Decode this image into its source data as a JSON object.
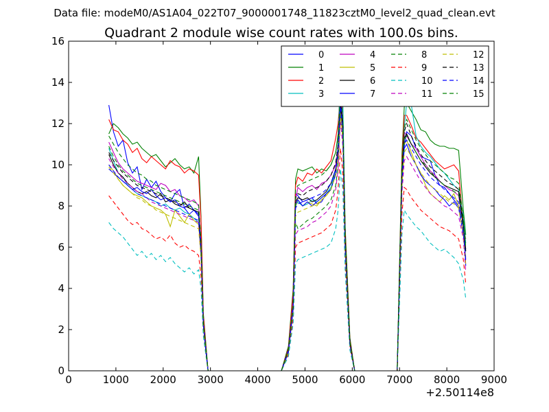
{
  "header": {
    "datafile": "Data file: modeM0/AS1A04_022T07_9000001748_11823cztM0_level2_quad_clean.evt"
  },
  "chart_data": {
    "type": "line",
    "title": "Quadrant 2 module wise count rates with 100.0s bins.",
    "xlabel": "",
    "ylabel": "",
    "x_offset_label": "+2.50114e8",
    "xlim": [
      0,
      9000
    ],
    "ylim": [
      0,
      16
    ],
    "xticks": [
      0,
      1000,
      2000,
      3000,
      4000,
      5000,
      6000,
      7000,
      8000,
      9000
    ],
    "yticks": [
      0,
      2,
      4,
      6,
      8,
      10,
      12,
      14,
      16
    ],
    "x": [
      850,
      950,
      1050,
      1150,
      1250,
      1350,
      1450,
      1550,
      1650,
      1750,
      1850,
      1950,
      2050,
      2150,
      2250,
      2350,
      2450,
      2550,
      2650,
      2750,
      2800,
      2850,
      2900,
      2950,
      3050,
      3500,
      4000,
      4500,
      4650,
      4750,
      4800,
      4850,
      4950,
      5050,
      5150,
      5250,
      5350,
      5450,
      5550,
      5650,
      5700,
      5750,
      5800,
      5850,
      5950,
      6050,
      6500,
      6950,
      7050,
      7100,
      7150,
      7250,
      7350,
      7450,
      7550,
      7650,
      7750,
      7850,
      7950,
      8050,
      8150,
      8250,
      8350,
      8400
    ],
    "legend": {
      "placement": "top-right",
      "columns": 4
    },
    "grid": false,
    "series": [
      {
        "name": "0",
        "color": "#0000ff",
        "dashed": false,
        "values": [
          12.9,
          11.6,
          10.9,
          11.2,
          10.1,
          9.6,
          9.9,
          8.8,
          9.3,
          8.9,
          9.2,
          8.7,
          8.4,
          8.2,
          8.6,
          8.8,
          7.9,
          7.6,
          7.8,
          7.5,
          6.0,
          2.5,
          1.2,
          0,
          0,
          0,
          0,
          0,
          1.0,
          3.3,
          8.6,
          8.5,
          8.2,
          8.3,
          8.4,
          8.1,
          8.2,
          8.6,
          8.9,
          9.5,
          10.5,
          12.6,
          11.3,
          6.0,
          1.3,
          0,
          0,
          0,
          9.0,
          10.9,
          11.6,
          11.4,
          10.8,
          10.4,
          10.3,
          10.2,
          9.5,
          9.0,
          8.9,
          8.6,
          8.3,
          8.0,
          7.2,
          5.1
        ]
      },
      {
        "name": "1",
        "color": "#008000",
        "dashed": false,
        "values": [
          11.5,
          12.0,
          11.8,
          11.5,
          11.3,
          11.0,
          11.1,
          10.8,
          10.6,
          10.4,
          10.5,
          10.2,
          9.9,
          10.1,
          10.3,
          10.0,
          9.8,
          9.9,
          9.6,
          10.4,
          7.5,
          2.8,
          1.4,
          0,
          0,
          0,
          0,
          0,
          1.2,
          4.0,
          9.3,
          9.8,
          9.7,
          9.8,
          9.9,
          9.6,
          9.8,
          9.7,
          10.0,
          10.6,
          11.5,
          14.2,
          12.8,
          7.0,
          1.6,
          0,
          0,
          0,
          10.5,
          12.8,
          13.0,
          12.6,
          12.2,
          11.7,
          11.6,
          11.2,
          11.0,
          10.9,
          10.9,
          10.8,
          10.8,
          10.7,
          7.8,
          6.6
        ]
      },
      {
        "name": "2",
        "color": "#ff0000",
        "dashed": false,
        "values": [
          12.2,
          11.7,
          11.6,
          11.2,
          11.0,
          10.6,
          10.8,
          10.3,
          10.1,
          10.4,
          10.2,
          10.0,
          9.8,
          10.2,
          10.0,
          9.9,
          9.6,
          9.8,
          9.7,
          9.5,
          7.3,
          2.7,
          1.3,
          0,
          0,
          0,
          0,
          0,
          1.1,
          3.8,
          9.0,
          9.4,
          9.2,
          9.6,
          9.5,
          9.8,
          9.6,
          9.9,
          10.2,
          11.3,
          12.0,
          13.6,
          12.4,
          6.8,
          1.5,
          0,
          0,
          0,
          10.1,
          12.4,
          12.4,
          11.9,
          11.3,
          11.1,
          10.8,
          10.5,
          10.2,
          10.0,
          9.8,
          9.9,
          10.0,
          9.7,
          7.0,
          6.4
        ]
      },
      {
        "name": "3",
        "color": "#00bfbf",
        "dashed": false,
        "values": [
          10.8,
          10.2,
          9.6,
          9.4,
          9.0,
          8.8,
          8.6,
          8.5,
          8.4,
          8.3,
          8.2,
          8.0,
          8.1,
          7.9,
          7.8,
          7.9,
          7.7,
          7.6,
          7.4,
          7.2,
          5.8,
          2.3,
          1.1,
          0,
          0,
          0,
          0,
          0,
          0.9,
          3.1,
          8.0,
          8.2,
          8.0,
          8.1,
          8.3,
          8.2,
          8.4,
          8.6,
          8.9,
          9.8,
          11.0,
          14.6,
          13.0,
          6.5,
          1.3,
          0,
          0,
          0,
          9.5,
          11.8,
          13.0,
          12.9,
          11.4,
          10.9,
          10.6,
          10.4,
          10.1,
          9.8,
          9.6,
          9.3,
          9.0,
          8.8,
          7.5,
          6.2
        ]
      },
      {
        "name": "4",
        "color": "#bf00bf",
        "dashed": false,
        "values": [
          11.1,
          10.6,
          10.1,
          9.8,
          9.6,
          9.4,
          9.2,
          9.1,
          9.0,
          8.9,
          8.8,
          9.1,
          9.0,
          8.7,
          8.8,
          8.5,
          8.4,
          8.2,
          8.3,
          8.0,
          6.2,
          2.4,
          1.2,
          0,
          0,
          0,
          0,
          0,
          1.0,
          3.4,
          8.3,
          8.9,
          8.7,
          8.9,
          9.0,
          8.8,
          9.1,
          9.2,
          9.5,
          10.0,
          10.8,
          12.8,
          11.8,
          6.2,
          1.4,
          0,
          0,
          0,
          9.6,
          11.6,
          11.4,
          11.0,
          10.8,
          10.4,
          10.0,
          9.7,
          9.5,
          9.2,
          9.0,
          8.8,
          8.7,
          8.5,
          7.0,
          5.8
        ]
      },
      {
        "name": "5",
        "color": "#bfbf00",
        "dashed": false,
        "values": [
          10.0,
          9.7,
          9.3,
          9.0,
          8.8,
          8.6,
          8.5,
          8.4,
          8.2,
          8.0,
          7.9,
          7.8,
          7.6,
          7.0,
          7.8,
          7.5,
          7.2,
          7.6,
          7.3,
          7.1,
          5.6,
          2.2,
          1.1,
          0,
          0,
          0,
          0,
          0,
          0.9,
          3.0,
          8.0,
          8.3,
          8.0,
          8.2,
          8.1,
          8.0,
          8.3,
          8.5,
          8.8,
          9.6,
          10.4,
          12.4,
          11.5,
          6.0,
          1.3,
          0,
          0,
          0,
          9.2,
          11.0,
          11.2,
          10.6,
          10.0,
          9.6,
          9.0,
          8.6,
          8.4,
          8.2,
          8.5,
          8.3,
          8.6,
          8.0,
          6.6,
          5.5
        ]
      },
      {
        "name": "6",
        "color": "#000000",
        "dashed": false,
        "values": [
          10.5,
          10.0,
          9.6,
          9.4,
          9.1,
          8.9,
          8.7,
          8.6,
          8.7,
          8.5,
          8.4,
          8.6,
          8.2,
          8.3,
          8.1,
          8.0,
          8.2,
          7.9,
          7.8,
          7.7,
          6.0,
          2.3,
          1.1,
          0,
          0,
          0,
          0,
          0,
          1.0,
          3.2,
          8.2,
          8.4,
          8.3,
          8.4,
          8.2,
          8.3,
          8.5,
          8.7,
          9.1,
          9.8,
          10.7,
          12.9,
          11.8,
          6.3,
          1.4,
          0,
          0,
          0,
          9.4,
          11.3,
          11.5,
          11.0,
          10.6,
          10.2,
          9.9,
          9.6,
          9.4,
          9.2,
          9.0,
          8.9,
          8.8,
          8.7,
          7.0,
          5.9
        ]
      },
      {
        "name": "7",
        "color": "#0000ff",
        "dashed": false,
        "values": [
          9.8,
          9.6,
          9.4,
          9.2,
          9.0,
          8.8,
          8.9,
          8.7,
          8.6,
          8.8,
          8.5,
          8.3,
          8.4,
          8.2,
          8.3,
          8.0,
          7.9,
          8.1,
          7.8,
          7.6,
          6.0,
          2.3,
          1.1,
          0,
          0,
          0,
          0,
          0,
          1.0,
          3.2,
          8.1,
          8.3,
          8.0,
          8.2,
          8.0,
          8.2,
          8.4,
          8.6,
          8.8,
          9.6,
          10.6,
          13.2,
          12.0,
          6.2,
          1.3,
          0,
          0,
          0,
          9.0,
          10.8,
          11.0,
          10.4,
          10.0,
          9.5,
          9.2,
          9.0,
          8.8,
          8.5,
          8.3,
          8.0,
          8.2,
          7.9,
          6.6,
          5.4
        ]
      },
      {
        "name": "8",
        "color": "#008000",
        "dashed": true,
        "values": [
          10.9,
          10.4,
          10.0,
          9.7,
          9.5,
          9.3,
          9.1,
          9.0,
          8.9,
          8.8,
          8.7,
          8.6,
          8.5,
          8.4,
          8.3,
          8.2,
          8.1,
          8.0,
          7.9,
          7.8,
          6.1,
          2.3,
          1.1,
          0,
          0,
          0,
          0,
          0,
          0.9,
          3.0,
          7.2,
          6.9,
          7.1,
          7.3,
          7.4,
          7.6,
          7.8,
          8.0,
          8.3,
          9.0,
          10.0,
          12.6,
          11.2,
          6.0,
          1.3,
          0,
          0,
          0,
          9.2,
          11.2,
          11.4,
          11.0,
          10.6,
          10.2,
          10.0,
          9.7,
          9.4,
          9.2,
          9.0,
          8.9,
          8.7,
          8.6,
          7.0,
          5.8
        ]
      },
      {
        "name": "9",
        "color": "#ff0000",
        "dashed": true,
        "values": [
          8.5,
          8.2,
          7.9,
          7.6,
          7.3,
          7.1,
          7.2,
          6.9,
          6.8,
          6.6,
          6.4,
          6.5,
          6.3,
          6.6,
          6.2,
          6.0,
          6.1,
          5.9,
          5.8,
          5.6,
          4.6,
          1.9,
          0.9,
          0,
          0,
          0,
          0,
          0,
          0.8,
          2.6,
          6.0,
          6.2,
          6.3,
          6.4,
          6.5,
          6.6,
          6.7,
          6.9,
          7.1,
          7.8,
          8.8,
          10.8,
          9.6,
          5.2,
          1.1,
          0,
          0,
          0,
          7.6,
          8.9,
          8.8,
          8.4,
          8.1,
          7.8,
          7.6,
          7.4,
          7.2,
          7.0,
          6.9,
          6.8,
          6.6,
          6.4,
          5.4,
          4.2
        ]
      },
      {
        "name": "10",
        "color": "#00bfbf",
        "dashed": true,
        "values": [
          7.2,
          6.9,
          6.7,
          6.5,
          6.2,
          5.9,
          5.6,
          5.8,
          5.5,
          5.7,
          5.4,
          5.6,
          5.3,
          5.5,
          5.2,
          5.0,
          4.8,
          5.0,
          4.7,
          4.9,
          4.0,
          1.7,
          0.8,
          0,
          0,
          0,
          0,
          0,
          0.7,
          2.3,
          5.2,
          5.4,
          5.5,
          5.6,
          5.7,
          5.8,
          5.9,
          6.0,
          6.2,
          6.9,
          7.8,
          9.8,
          8.8,
          4.8,
          1.0,
          0,
          0,
          0,
          6.6,
          7.8,
          7.6,
          7.3,
          7.0,
          6.8,
          6.5,
          6.2,
          6.0,
          5.8,
          5.9,
          5.7,
          5.5,
          5.2,
          4.4,
          3.5
        ]
      },
      {
        "name": "11",
        "color": "#bf00bf",
        "dashed": true,
        "values": [
          10.3,
          9.9,
          9.6,
          9.3,
          9.1,
          8.9,
          8.7,
          8.6,
          8.4,
          8.2,
          8.1,
          8.0,
          7.9,
          7.8,
          7.7,
          7.6,
          7.5,
          7.4,
          7.3,
          7.2,
          5.7,
          2.2,
          1.0,
          0,
          0,
          0,
          0,
          0,
          0.9,
          2.9,
          6.6,
          6.8,
          6.9,
          7.0,
          7.2,
          7.3,
          7.5,
          7.7,
          8.0,
          8.8,
          9.8,
          12.1,
          10.9,
          5.8,
          1.2,
          0,
          0,
          0,
          8.6,
          10.2,
          10.4,
          10.0,
          9.6,
          9.2,
          8.9,
          8.6,
          8.4,
          8.2,
          8.0,
          7.9,
          7.7,
          7.5,
          6.4,
          4.8
        ]
      },
      {
        "name": "12",
        "color": "#bfbf00",
        "dashed": true,
        "values": [
          9.9,
          9.6,
          9.3,
          9.0,
          8.8,
          8.6,
          8.4,
          8.3,
          8.1,
          8.0,
          7.8,
          7.7,
          7.6,
          7.5,
          7.4,
          7.3,
          7.2,
          7.1,
          7.0,
          6.9,
          5.5,
          2.1,
          1.0,
          0,
          0,
          0,
          0,
          0,
          0.9,
          2.9,
          7.5,
          7.7,
          7.8,
          7.9,
          8.0,
          8.1,
          8.3,
          8.5,
          8.8,
          9.5,
          10.4,
          12.5,
          11.3,
          6.0,
          1.3,
          0,
          0,
          0,
          9.0,
          10.6,
          10.8,
          10.4,
          10.0,
          9.6,
          9.3,
          9.0,
          8.8,
          8.6,
          8.4,
          8.2,
          8.1,
          7.9,
          6.6,
          5.2
        ]
      },
      {
        "name": "13",
        "color": "#000000",
        "dashed": true,
        "values": [
          10.6,
          10.2,
          9.9,
          9.6,
          9.4,
          9.2,
          9.0,
          8.9,
          8.8,
          8.7,
          8.6,
          8.5,
          8.4,
          8.3,
          8.2,
          8.1,
          8.0,
          7.9,
          7.8,
          7.7,
          6.0,
          2.3,
          1.1,
          0,
          0,
          0,
          0,
          0,
          1.0,
          3.1,
          8.4,
          8.6,
          8.5,
          8.7,
          8.8,
          8.9,
          9.0,
          9.2,
          9.5,
          10.1,
          11.0,
          13.0,
          12.0,
          6.4,
          1.4,
          0,
          0,
          0,
          9.7,
          11.6,
          12.0,
          11.4,
          10.9,
          10.5,
          10.2,
          9.9,
          9.7,
          9.5,
          9.3,
          9.1,
          9.0,
          8.8,
          7.2,
          5.8
        ]
      },
      {
        "name": "14",
        "color": "#0000ff",
        "dashed": true,
        "values": [
          10.0,
          9.7,
          9.4,
          9.2,
          9.0,
          8.8,
          8.6,
          8.5,
          8.4,
          8.3,
          8.2,
          8.1,
          8.0,
          7.9,
          7.8,
          7.7,
          7.6,
          7.5,
          7.4,
          7.3,
          5.8,
          2.2,
          1.0,
          0,
          0,
          0,
          0,
          0,
          0.9,
          3.0,
          7.9,
          8.1,
          8.2,
          8.3,
          8.4,
          8.5,
          8.6,
          8.8,
          9.1,
          9.8,
          10.7,
          12.8,
          11.6,
          6.1,
          1.3,
          0,
          0,
          0,
          9.3,
          11.0,
          11.2,
          10.8,
          10.4,
          10.0,
          9.7,
          9.4,
          9.2,
          9.0,
          8.8,
          8.6,
          8.4,
          8.2,
          6.8,
          5.4
        ]
      },
      {
        "name": "15",
        "color": "#008000",
        "dashed": true,
        "values": [
          11.4,
          11.0,
          10.6,
          10.3,
          10.0,
          9.8,
          9.6,
          9.5,
          9.3,
          9.2,
          9.0,
          8.9,
          8.8,
          8.7,
          8.6,
          8.5,
          8.4,
          8.3,
          8.2,
          8.1,
          6.3,
          2.4,
          1.2,
          0,
          0,
          0,
          0,
          0,
          1.0,
          3.3,
          8.8,
          9.0,
          9.1,
          9.2,
          9.3,
          9.4,
          9.5,
          9.7,
          10.0,
          10.6,
          11.4,
          13.5,
          12.3,
          6.6,
          1.4,
          0,
          0,
          0,
          9.9,
          11.8,
          12.2,
          11.7,
          11.2,
          10.8,
          10.5,
          10.2,
          10.0,
          9.8,
          9.6,
          9.4,
          9.3,
          9.1,
          7.4,
          6.0
        ]
      }
    ]
  }
}
